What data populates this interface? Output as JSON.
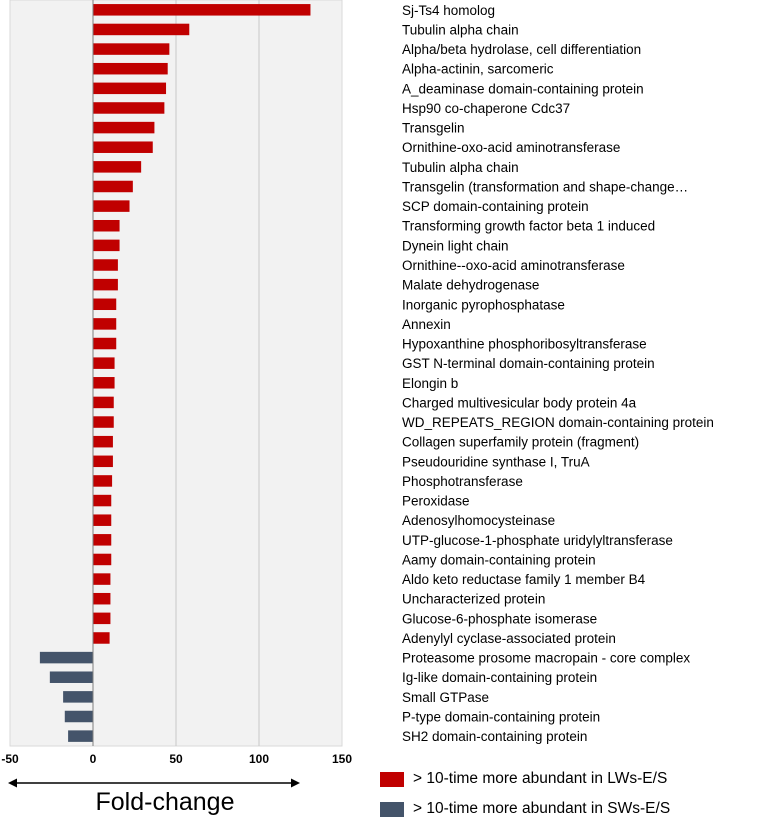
{
  "chart_data": {
    "type": "bar",
    "orientation": "horizontal",
    "title": "",
    "xlabel": "Fold-change",
    "xlim": [
      -50,
      150
    ],
    "xticks": [
      -50,
      0,
      50,
      100,
      150
    ],
    "grid": true,
    "series": [
      {
        "name": "> 10-time more abundant in LWs-E/S",
        "color": "#C00000"
      },
      {
        "name": "> 10-time more abundant in SWs-E/S",
        "color": "#44546A"
      }
    ],
    "categories": [
      "Sj-Ts4 homolog",
      "Tubulin alpha chain",
      "Alpha/beta hydrolase, cell differentiation",
      "Alpha-actinin, sarcomeric",
      "A_deaminase domain-containing protein",
      "Hsp90 co-chaperone Cdc37",
      "Transgelin",
      "Ornithine-oxo-acid aminotransferase",
      "Tubulin alpha chain",
      "Transgelin (transformation and shape-change…",
      "SCP domain-containing protein",
      "Transforming growth factor beta 1 induced",
      "Dynein light chain",
      "Ornithine--oxo-acid aminotransferase",
      "Malate dehydrogenase",
      "Inorganic pyrophosphatase",
      "Annexin",
      "Hypoxanthine phosphoribosyltransferase",
      "GST N-terminal domain-containing protein",
      "Elongin b",
      "Charged multivesicular body protein 4a",
      "WD_REPEATS_REGION domain-containing protein",
      "Collagen superfamily protein (fragment)",
      "Pseudouridine synthase I, TruA",
      "Phosphotransferase",
      "Peroxidase",
      "Adenosylhomocysteinase",
      "UTP-glucose-1-phosphate uridylyltransferase",
      "Aamy domain-containing protein",
      "Aldo keto reductase family 1 member B4",
      "Uncharacterized protein",
      "Glucose-6-phosphate isomerase",
      "Adenylyl cyclase-associated protein",
      "Proteasome prosome macropain - core complex",
      "Ig-like domain-containing protein",
      "Small GTPase",
      "P-type domain-containing protein",
      "SH2 domain-containing protein"
    ],
    "values": [
      131,
      58,
      46,
      45,
      44,
      43,
      37,
      36,
      29,
      24,
      22,
      16,
      16,
      15,
      15,
      14,
      14,
      14,
      13,
      13,
      12.5,
      12.5,
      12,
      12,
      11.5,
      11,
      11,
      11,
      11,
      10.5,
      10.5,
      10.5,
      10,
      -32,
      -26,
      -18,
      -17,
      -15
    ],
    "legend_position": "bottom-right"
  }
}
